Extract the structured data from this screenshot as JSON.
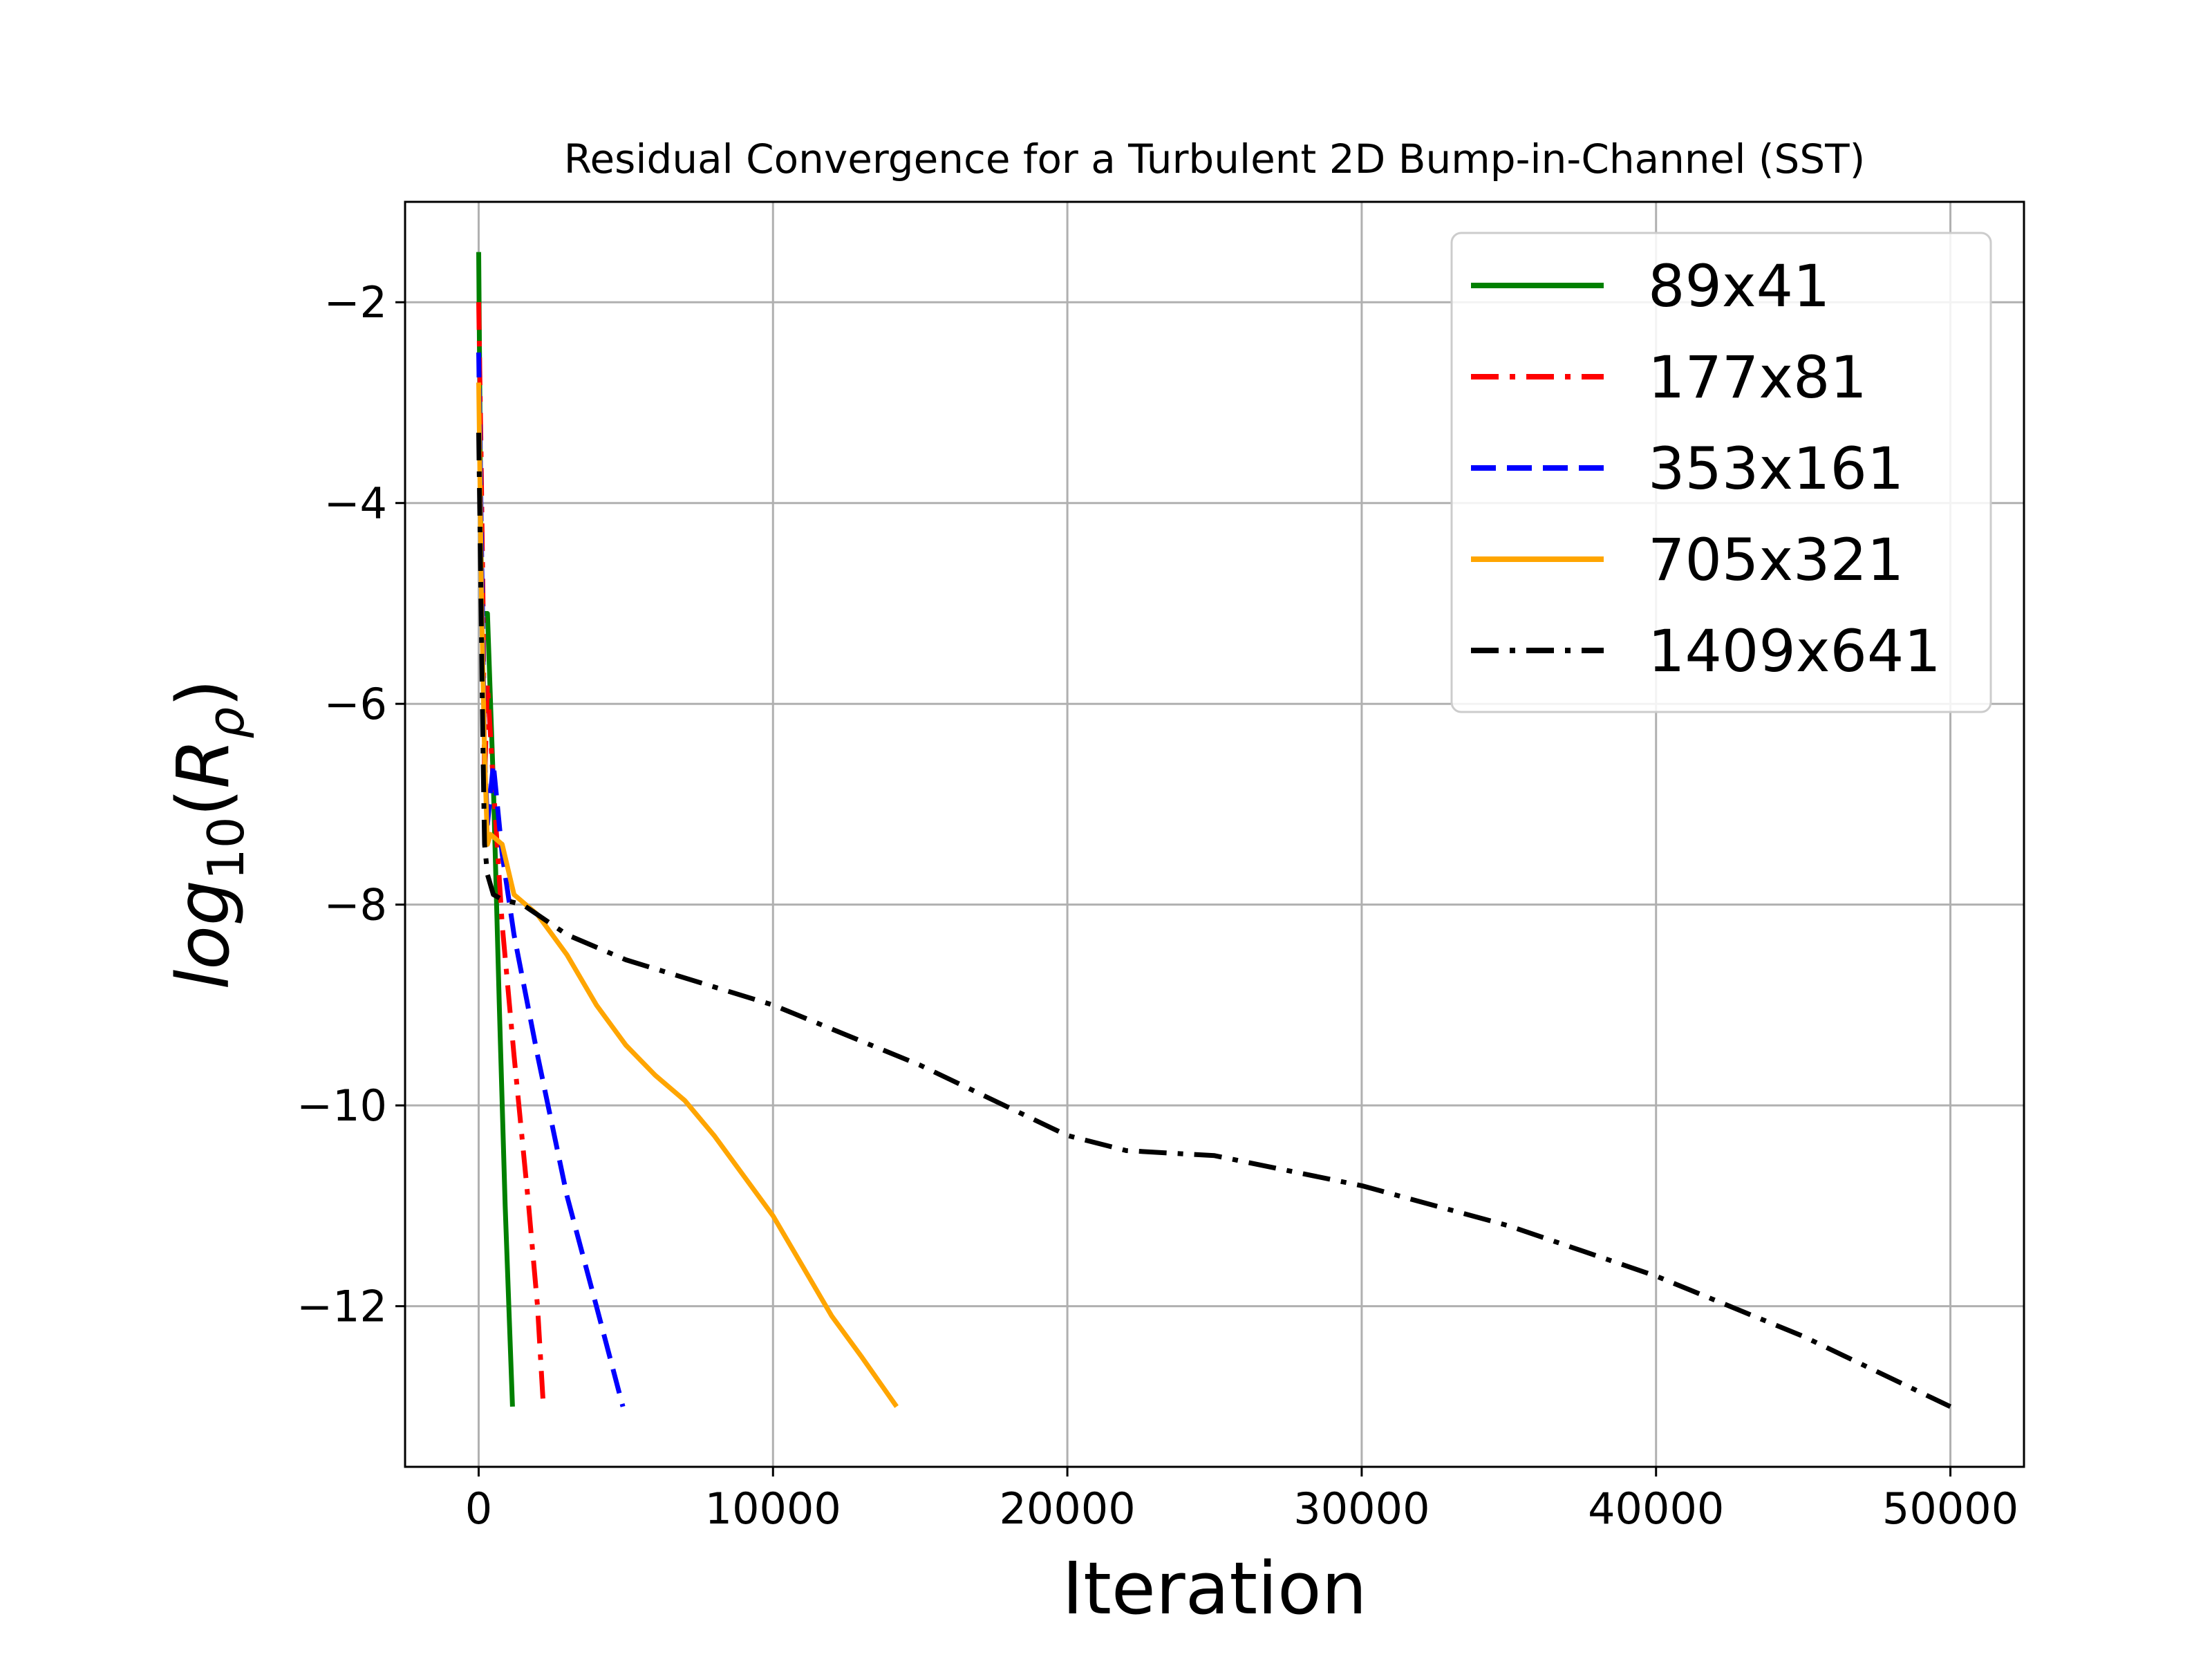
{
  "chart_data": {
    "type": "line",
    "title": "Residual Convergence for a Turbulent 2D Bump-in-Channel (SST)",
    "xlabel": "Iteration",
    "ylabel": {
      "base": "log",
      "sub": "10",
      "open": "(",
      "var": "R",
      "var_sub": "ρ",
      "close": ")"
    },
    "xlim": [
      -2500,
      52500
    ],
    "ylim": [
      -13.6,
      -1.0
    ],
    "x_ticks": [
      0,
      10000,
      20000,
      30000,
      40000,
      50000
    ],
    "y_ticks": [
      -2,
      -4,
      -6,
      -8,
      -10,
      -12
    ],
    "x_tick_labels": [
      "0",
      "10000",
      "20000",
      "30000",
      "40000",
      "50000"
    ],
    "y_tick_labels": [
      "−2",
      "−4",
      "−6",
      "−8",
      "−10",
      "−12"
    ],
    "grid": true,
    "legend_position": "top-right",
    "series": [
      {
        "name": "89x41",
        "color": "#008000",
        "dash": "solid",
        "points": [
          [
            0,
            -1.5
          ],
          [
            40,
            -3.0
          ],
          [
            80,
            -4.5
          ],
          [
            130,
            -5.1
          ],
          [
            300,
            -5.1
          ],
          [
            500,
            -6.8
          ],
          [
            700,
            -9.0
          ],
          [
            900,
            -11.0
          ],
          [
            1150,
            -13.0
          ]
        ]
      },
      {
        "name": "177x81",
        "color": "#ff0000",
        "dash": "dashdot",
        "points": [
          [
            0,
            -2.0
          ],
          [
            80,
            -3.5
          ],
          [
            150,
            -5.0
          ],
          [
            200,
            -6.8
          ],
          [
            300,
            -5.8
          ],
          [
            500,
            -6.8
          ],
          [
            800,
            -8.2
          ],
          [
            1200,
            -9.5
          ],
          [
            1700,
            -11.0
          ],
          [
            2000,
            -12.0
          ],
          [
            2200,
            -13.0
          ]
        ]
      },
      {
        "name": "353x161",
        "color": "#0000ff",
        "dash": "dashed",
        "points": [
          [
            0,
            -2.5
          ],
          [
            100,
            -4.5
          ],
          [
            200,
            -6.5
          ],
          [
            300,
            -7.2
          ],
          [
            500,
            -6.6
          ],
          [
            800,
            -7.5
          ],
          [
            1200,
            -8.3
          ],
          [
            2000,
            -9.5
          ],
          [
            3000,
            -10.9
          ],
          [
            4000,
            -12.0
          ],
          [
            4900,
            -13.0
          ]
        ]
      },
      {
        "name": "705x321",
        "color": "#ffa500",
        "dash": "solid",
        "points": [
          [
            0,
            -2.8
          ],
          [
            100,
            -5.0
          ],
          [
            200,
            -6.5
          ],
          [
            300,
            -7.4
          ],
          [
            400,
            -7.3
          ],
          [
            800,
            -7.4
          ],
          [
            1200,
            -7.9
          ],
          [
            2000,
            -8.1
          ],
          [
            3000,
            -8.5
          ],
          [
            4000,
            -9.0
          ],
          [
            5000,
            -9.4
          ],
          [
            6000,
            -9.7
          ],
          [
            7000,
            -9.95
          ],
          [
            8000,
            -10.3
          ],
          [
            9000,
            -10.7
          ],
          [
            10000,
            -11.1
          ],
          [
            11000,
            -11.6
          ],
          [
            12000,
            -12.1
          ],
          [
            13000,
            -12.5
          ],
          [
            14200,
            -13.0
          ]
        ]
      },
      {
        "name": "1409x641",
        "color": "#000000",
        "dash": "dashdot",
        "points": [
          [
            0,
            -3.3
          ],
          [
            80,
            -5.0
          ],
          [
            150,
            -6.5
          ],
          [
            200,
            -7.4
          ],
          [
            300,
            -7.7
          ],
          [
            500,
            -7.9
          ],
          [
            800,
            -7.95
          ],
          [
            1500,
            -8.0
          ],
          [
            3000,
            -8.3
          ],
          [
            5000,
            -8.55
          ],
          [
            10000,
            -9.0
          ],
          [
            15000,
            -9.6
          ],
          [
            20000,
            -10.3
          ],
          [
            22000,
            -10.45
          ],
          [
            25000,
            -10.5
          ],
          [
            30000,
            -10.8
          ],
          [
            35000,
            -11.2
          ],
          [
            40000,
            -11.7
          ],
          [
            45000,
            -12.3
          ],
          [
            50000,
            -13.0
          ]
        ]
      }
    ]
  }
}
